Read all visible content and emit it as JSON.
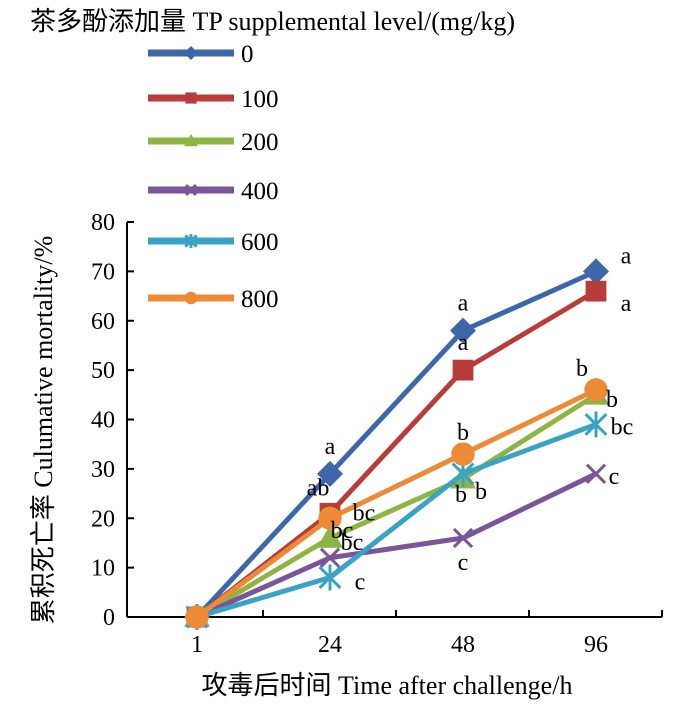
{
  "chart_data": {
    "type": "line",
    "legend_title": "茶多酚添加量 TP supplemental level/(mg/kg)",
    "legend_position": "top-left",
    "xlabel": "攻毒后时间  Time after challenge/h",
    "ylabel": "累积死亡率  Culumative mortality/%",
    "categories": [
      "1",
      "24",
      "48",
      "96"
    ],
    "ylim": [
      0,
      80
    ],
    "yticks": [
      "0",
      "10",
      "20",
      "30",
      "40",
      "50",
      "60",
      "70",
      "80"
    ],
    "grid": false,
    "series": [
      {
        "name": "0",
        "color": "#3c67a8",
        "marker": "diamond",
        "values": [
          0,
          29,
          58,
          70
        ],
        "labels": [
          "",
          "a",
          "a",
          "a"
        ]
      },
      {
        "name": "100",
        "color": "#b83d3a",
        "marker": "square",
        "values": [
          0,
          21,
          50,
          66
        ],
        "labels": [
          "",
          "ab",
          "a",
          "a"
        ]
      },
      {
        "name": "200",
        "color": "#8eb443",
        "marker": "triangle",
        "values": [
          0,
          16,
          28,
          45
        ],
        "labels": [
          "",
          "bc",
          "b",
          "b"
        ]
      },
      {
        "name": "400",
        "color": "#7a559a",
        "marker": "cross",
        "values": [
          0,
          12,
          16,
          29
        ],
        "labels": [
          "",
          "bc",
          "c",
          "c"
        ]
      },
      {
        "name": "600",
        "color": "#38a3c4",
        "marker": "star",
        "values": [
          0,
          8,
          29,
          39
        ],
        "labels": [
          "",
          "c",
          "b",
          "bc"
        ]
      },
      {
        "name": "800",
        "color": "#ec8a36",
        "marker": "circle",
        "values": [
          0,
          20,
          33,
          46
        ],
        "labels": [
          "",
          "bc",
          "b",
          "b"
        ]
      }
    ]
  }
}
